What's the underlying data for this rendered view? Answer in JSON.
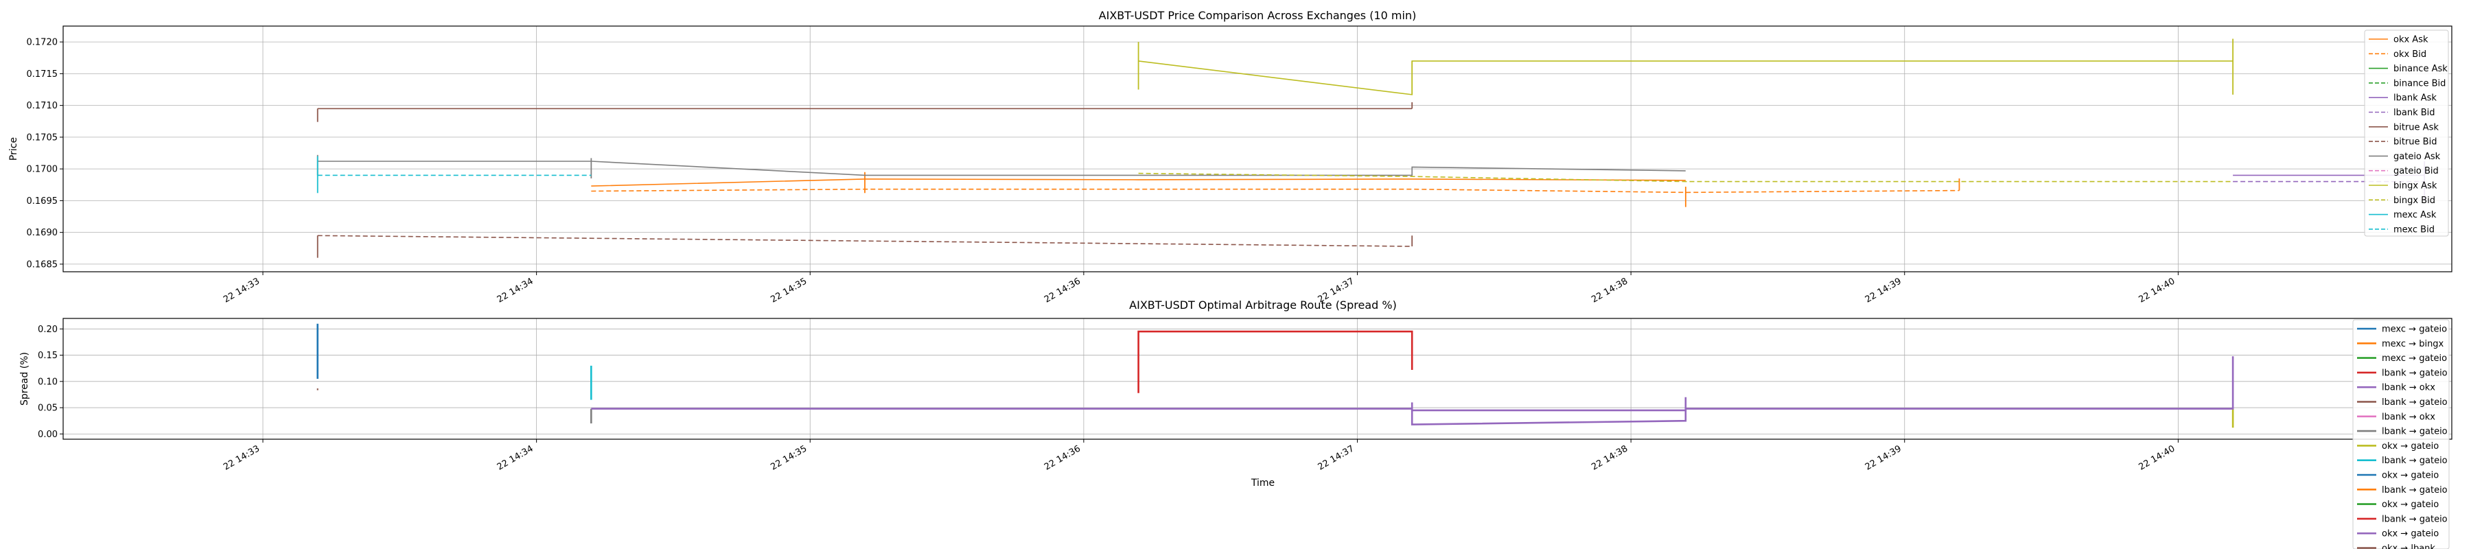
{
  "chart_data": [
    {
      "type": "line",
      "title": "AIXBT-USDT Price Comparison Across Exchanges (10 min)",
      "xlabel": "",
      "ylabel": "Price",
      "ylim": [
        0.16838,
        0.17225
      ],
      "yticks": [
        0.1685,
        0.169,
        0.1695,
        0.17,
        0.1705,
        0.171,
        0.1715,
        0.172
      ],
      "ytick_labels": [
        "0.1685",
        "0.1690",
        "0.1695",
        "0.1700",
        "0.1705",
        "0.1710",
        "0.1715",
        "0.1720"
      ],
      "xlim": [
        -0.23,
        8.5
      ],
      "xticks": [
        0.5,
        1.5,
        2.5,
        3.5,
        4.5,
        5.5,
        6.5,
        7.5
      ],
      "xtick_labels": [
        "22 14:33",
        "22 14:34",
        "22 14:35",
        "22 14:36",
        "22 14:37",
        "22 14:38",
        "22 14:39",
        "22 14:40"
      ],
      "grid": true,
      "legend_position": "top-right",
      "series": [
        {
          "name": "okx Ask",
          "color": "#ff7f0e",
          "dash": false,
          "segments": [
            [
              [
                1.7,
                0.16973
              ],
              [
                2.7,
                0.16984
              ],
              [
                3.7,
                0.16983
              ],
              [
                4.7,
                0.16984
              ],
              [
                5.7,
                0.16982
              ]
            ]
          ],
          "spikes": [
            [
              2.7,
              0.16962,
              0.16995
            ],
            [
              5.7,
              0.1694,
              0.16972
            ]
          ]
        },
        {
          "name": "okx Bid",
          "color": "#ff7f0e",
          "dash": true,
          "segments": [
            [
              [
                1.7,
                0.16965
              ],
              [
                2.7,
                0.16968
              ],
              [
                3.7,
                0.16968
              ],
              [
                4.7,
                0.16968
              ],
              [
                5.7,
                0.16963
              ],
              [
                6.7,
                0.16966
              ]
            ]
          ],
          "spikes": [
            [
              6.7,
              0.16966,
              0.16985
            ]
          ]
        },
        {
          "name": "binance Ask",
          "color": "#2ca02c",
          "dash": false,
          "segments": []
        },
        {
          "name": "binance Bid",
          "color": "#2ca02c",
          "dash": true,
          "segments": []
        },
        {
          "name": "lbank Ask",
          "color": "#9467bd",
          "dash": false,
          "segments": [
            [
              [
                7.7,
                0.1699
              ],
              [
                8.4,
                0.1699
              ]
            ]
          ],
          "spikes": [
            [
              8.4,
              0.1695,
              0.17012
            ]
          ]
        },
        {
          "name": "lbank Bid",
          "color": "#9467bd",
          "dash": true,
          "segments": [
            [
              [
                7.7,
                0.1698
              ],
              [
                8.4,
                0.1698
              ]
            ]
          ]
        },
        {
          "name": "bitrue Ask",
          "color": "#8c564b",
          "dash": false,
          "segments": [
            [
              [
                0.7,
                0.17095
              ],
              [
                4.7,
                0.17095
              ]
            ]
          ],
          "spikes": [
            [
              0.7,
              0.17074,
              0.17095
            ],
            [
              4.7,
              0.17095,
              0.17105
            ]
          ]
        },
        {
          "name": "bitrue Bid",
          "color": "#8c564b",
          "dash": true,
          "segments": [
            [
              [
                0.7,
                0.16895
              ],
              [
                4.7,
                0.16878
              ]
            ]
          ],
          "spikes": [
            [
              0.7,
              0.1686,
              0.16895
            ],
            [
              4.7,
              0.16878,
              0.16895
            ]
          ]
        },
        {
          "name": "gateio Ask",
          "color": "#7f7f7f",
          "dash": false,
          "segments": [
            [
              [
                0.7,
                0.17012
              ],
              [
                1.7,
                0.17012
              ],
              [
                2.7,
                0.1699
              ],
              [
                4.7,
                0.1699
              ],
              [
                4.7,
                0.17003
              ],
              [
                5.7,
                0.16997
              ]
            ]
          ],
          "spikes": [
            [
              0.7,
              0.1699,
              0.17022
            ],
            [
              1.7,
              0.16985,
              0.17017
            ]
          ]
        },
        {
          "name": "gateio Bid",
          "color": "#e377c2",
          "dash": true,
          "segments": []
        },
        {
          "name": "bingx Ask",
          "color": "#bcbd22",
          "dash": false,
          "segments": [
            [
              [
                3.7,
                0.1717
              ],
              [
                4.7,
                0.17117
              ],
              [
                4.7,
                0.1717
              ],
              [
                7.7,
                0.1717
              ]
            ]
          ],
          "spikes": [
            [
              3.7,
              0.17125,
              0.172
            ],
            [
              4.7,
              0.17117,
              0.1717
            ],
            [
              7.7,
              0.17117,
              0.17205
            ]
          ]
        },
        {
          "name": "bingx Bid",
          "color": "#bcbd22",
          "dash": true,
          "segments": [
            [
              [
                3.7,
                0.16993
              ],
              [
                4.7,
                0.16988
              ],
              [
                5.7,
                0.1698
              ],
              [
                7.7,
                0.1698
              ]
            ]
          ]
        },
        {
          "name": "mexc Ask",
          "color": "#17becf",
          "dash": false,
          "segments": [],
          "spikes": [
            [
              0.7,
              0.16962,
              0.1702
            ]
          ]
        },
        {
          "name": "mexc Bid",
          "color": "#17becf",
          "dash": true,
          "segments": [
            [
              [
                0.7,
                0.1699
              ],
              [
                1.7,
                0.1699
              ]
            ]
          ]
        }
      ]
    },
    {
      "type": "line",
      "title": "AIXBT-USDT Optimal Arbitrage Route (Spread %)",
      "xlabel": "Time",
      "ylabel": "Spread (%)",
      "ylim": [
        -0.01,
        0.22
      ],
      "yticks": [
        0.0,
        0.05,
        0.1,
        0.15,
        0.2
      ],
      "ytick_labels": [
        "0.00",
        "0.05",
        "0.10",
        "0.15",
        "0.20"
      ],
      "xlim": [
        -0.23,
        8.5
      ],
      "xticks": [
        0.5,
        1.5,
        2.5,
        3.5,
        4.5,
        5.5,
        6.5,
        7.5
      ],
      "xtick_labels": [
        "22 14:33",
        "22 14:34",
        "22 14:35",
        "22 14:36",
        "22 14:37",
        "22 14:38",
        "22 14:39",
        "22 14:40"
      ],
      "grid": true,
      "legend_position": "right",
      "series": [
        {
          "name": "mexc → gateio",
          "color": "#1f77b4",
          "points": [
            [
              0.7,
              0.21
            ],
            [
              0.7,
              0.105
            ]
          ]
        },
        {
          "name": "mexc → bingx",
          "color": "#ff7f0e",
          "points": []
        },
        {
          "name": "mexc → gateio",
          "color": "#2ca02c",
          "points": []
        },
        {
          "name": "lbank → gateio",
          "color": "#d62728",
          "points": []
        },
        {
          "name": "lbank → okx",
          "color": "#9467bd",
          "points": [
            [
              4.7,
              0.06
            ],
            [
              4.7,
              0.018
            ],
            [
              5.7,
              0.025
            ],
            [
              5.7,
              0.07
            ]
          ]
        },
        {
          "name": "lbank → gateio",
          "color": "#8c564b",
          "points": [
            [
              0.7,
              0.085
            ]
          ]
        },
        {
          "name": "lbank → okx",
          "color": "#e377c2",
          "points": []
        },
        {
          "name": "lbank → gateio",
          "color": "#7f7f7f",
          "points": [
            [
              1.7,
              0.02
            ],
            [
              1.7,
              0.048
            ]
          ]
        },
        {
          "name": "okx → gateio",
          "color": "#bcbd22",
          "points": [
            [
              7.7,
              0.048
            ],
            [
              7.7,
              0.012
            ]
          ]
        },
        {
          "name": "lbank → gateio",
          "color": "#17becf",
          "points": [
            [
              1.7,
              0.13
            ],
            [
              1.7,
              0.065
            ]
          ]
        },
        {
          "name": "okx → gateio",
          "color": "#1f77b4",
          "points": []
        },
        {
          "name": "lbank → gateio",
          "color": "#ff7f0e",
          "points": []
        },
        {
          "name": "okx → gateio",
          "color": "#2ca02c",
          "points": []
        },
        {
          "name": "lbank → gateio",
          "color": "#d62728",
          "points": [
            [
              3.7,
              0.078
            ],
            [
              3.7,
              0.195
            ],
            [
              4.7,
              0.195
            ],
            [
              4.7,
              0.122
            ]
          ]
        },
        {
          "name": "okx → gateio",
          "color": "#9467bd",
          "points": [
            [
              1.7,
              0.048
            ],
            [
              4.7,
              0.048
            ],
            [
              4.7,
              0.045
            ],
            [
              5.7,
              0.045
            ],
            [
              5.7,
              0.048
            ],
            [
              7.7,
              0.048
            ],
            [
              7.7,
              0.148
            ]
          ]
        },
        {
          "name": "okx → lbank",
          "color": "#8c564b",
          "points": []
        }
      ]
    }
  ]
}
